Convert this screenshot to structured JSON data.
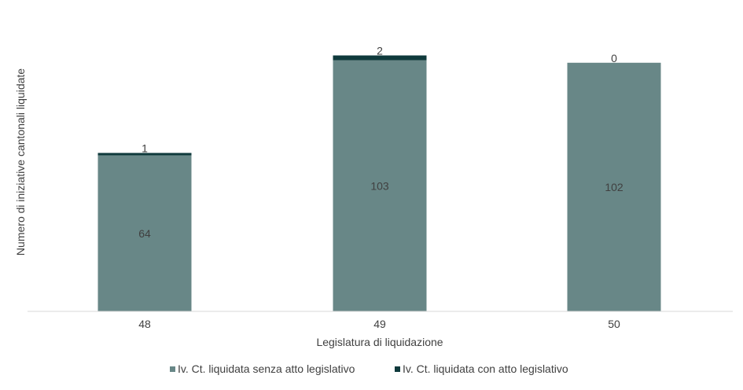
{
  "chart_data": {
    "type": "bar",
    "stacked": true,
    "categories": [
      "48",
      "49",
      "50"
    ],
    "series": [
      {
        "name": "Iv. Ct. liquidata senza atto legislativo",
        "color": "#688787",
        "values": [
          64,
          103,
          102
        ]
      },
      {
        "name": "Iv. Ct. liquidata con atto legislativo",
        "color": "#0f3a3c",
        "values": [
          1,
          2,
          0
        ]
      }
    ],
    "title": "",
    "xlabel": "Legislatura di liquidazione",
    "ylabel": "Numero di iniziative cantonali liquidate",
    "ylim": [
      0,
      110
    ],
    "grid": false,
    "legend": "bottom"
  }
}
